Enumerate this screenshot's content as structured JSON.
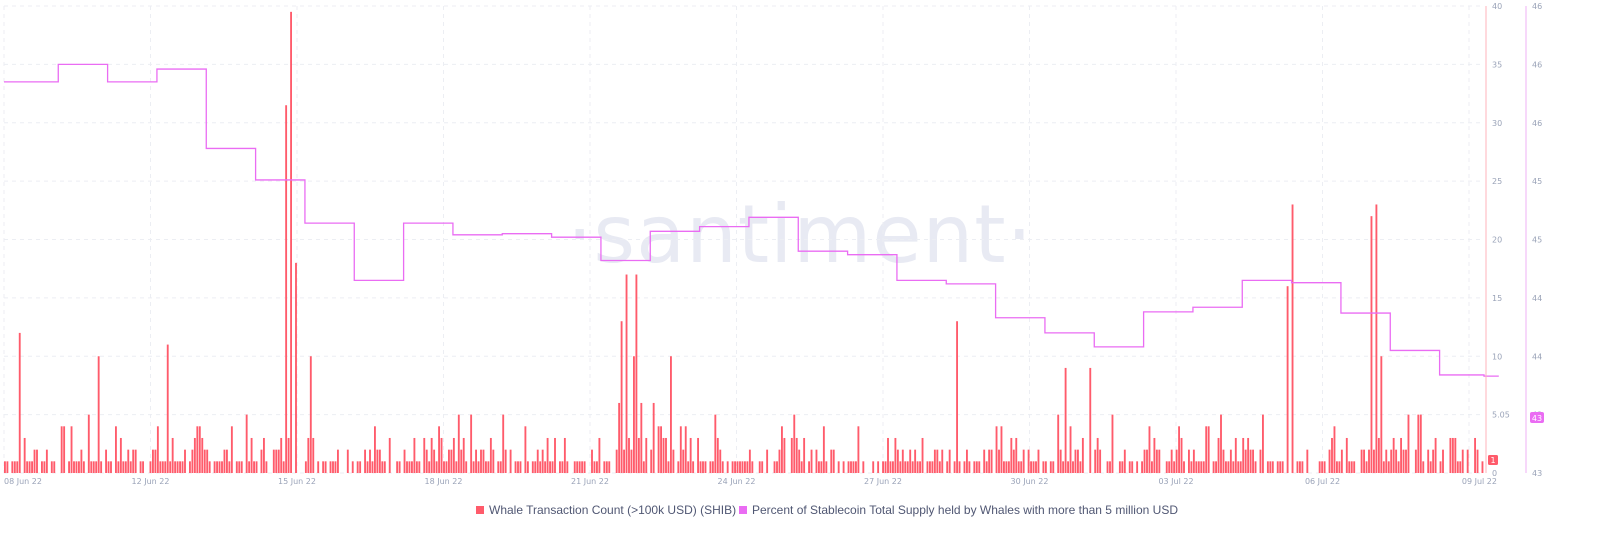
{
  "brand": {
    "watermark": "·santiment·",
    "bar_color": "#ff5b6b",
    "line_color": "#ea6cf3"
  },
  "chart_data": {
    "type": "bar",
    "x_ticks": [
      "08 Jun 22",
      "12 Jun 22",
      "15 Jun 22",
      "18 Jun 22",
      "21 Jun 22",
      "24 Jun 22",
      "27 Jun 22",
      "30 Jun 22",
      "03 Jul 22",
      "06 Jul 22",
      "09 Jul 22"
    ],
    "y_left": {
      "ticks": [
        "0",
        "5.05",
        "10",
        "15",
        "20",
        "25",
        "30",
        "35",
        "40"
      ],
      "lim": [
        0,
        40
      ]
    },
    "y_right": {
      "ticks": [
        "43",
        "43",
        "44",
        "44",
        "45",
        "45",
        "46",
        "46",
        "46"
      ],
      "lim": [
        42.8,
        46.8
      ]
    },
    "current_badges": {
      "bars": "1",
      "line": "43"
    },
    "legend": [
      {
        "label": "Whale Transaction Count (>100k USD) (SHIB)",
        "color": "#ff5b6b"
      },
      {
        "label": "Percent of Stablecoin Total Supply held by Whales with more than 5 million USD",
        "color": "#ea6cf3"
      }
    ],
    "series": [
      {
        "name": "Whale Transaction Count (>100k USD) (SHIB)",
        "kind": "bar",
        "axis": "left",
        "spikes": [
          {
            "x": 0.3,
            "y": 12
          },
          {
            "x": 1.9,
            "y": 10
          },
          {
            "x": 3.3,
            "y": 11
          },
          {
            "x": 5.7,
            "y": 31.5
          },
          {
            "x": 5.8,
            "y": 39.5
          },
          {
            "x": 5.9,
            "y": 18
          },
          {
            "x": 6.2,
            "y": 10
          },
          {
            "x": 12.5,
            "y": 13
          },
          {
            "x": 12.6,
            "y": 17
          },
          {
            "x": 12.8,
            "y": 17
          },
          {
            "x": 13.5,
            "y": 10
          },
          {
            "x": 19.3,
            "y": 13
          },
          {
            "x": 21.5,
            "y": 9
          },
          {
            "x": 22.0,
            "y": 9
          },
          {
            "x": 26.0,
            "y": 16
          },
          {
            "x": 26.1,
            "y": 23
          },
          {
            "x": 27.7,
            "y": 22
          },
          {
            "x": 27.8,
            "y": 23
          },
          {
            "x": 27.9,
            "y": 10
          }
        ],
        "baseline_typical": [
          0,
          5
        ]
      },
      {
        "name": "Percent of Stablecoin Total Supply held by Whales with more than 5 million USD",
        "kind": "step-line",
        "axis": "right",
        "points": [
          [
            0.0,
            46.15
          ],
          [
            1.1,
            46.3
          ],
          [
            2.1,
            46.15
          ],
          [
            3.1,
            46.26
          ],
          [
            4.1,
            45.58
          ],
          [
            5.1,
            45.31
          ],
          [
            6.1,
            44.94
          ],
          [
            7.1,
            44.45
          ],
          [
            8.1,
            44.94
          ],
          [
            9.1,
            44.84
          ],
          [
            10.1,
            44.85
          ],
          [
            11.1,
            44.82
          ],
          [
            12.1,
            44.62
          ],
          [
            13.1,
            44.87
          ],
          [
            14.1,
            44.91
          ],
          [
            15.1,
            44.99
          ],
          [
            16.1,
            44.7
          ],
          [
            17.1,
            44.67
          ],
          [
            18.1,
            44.45
          ],
          [
            19.1,
            44.42
          ],
          [
            20.1,
            44.13
          ],
          [
            21.1,
            44.0
          ],
          [
            22.1,
            43.88
          ],
          [
            23.1,
            44.18
          ],
          [
            24.1,
            44.22
          ],
          [
            25.1,
            44.45
          ],
          [
            26.1,
            44.43
          ],
          [
            27.1,
            44.17
          ],
          [
            28.1,
            43.85
          ],
          [
            29.1,
            43.64
          ],
          [
            30.0,
            43.63
          ]
        ]
      }
    ],
    "grid": true,
    "legend_position": "bottom"
  }
}
